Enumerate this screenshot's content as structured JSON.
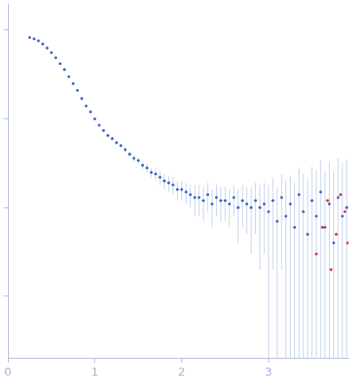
{
  "chart_data": {
    "type": "scatter",
    "log": "y",
    "grid": false,
    "tick_labels": "x",
    "xlim": [
      0,
      3.92
    ],
    "xticks": [
      0,
      1,
      2,
      3
    ],
    "ylim": [
      0.0002,
      2
    ],
    "yticks": [
      0.001,
      0.01,
      0.1,
      1
    ],
    "series": [
      {
        "color": "#3a65c0",
        "marker": "circle",
        "x": [
          0.25,
          0.3,
          0.35,
          0.4,
          0.45,
          0.5,
          0.55,
          0.6,
          0.65,
          0.7,
          0.75,
          0.8,
          0.85,
          0.9,
          0.95,
          1.0,
          1.05,
          1.1,
          1.15,
          1.2,
          1.25,
          1.3,
          1.35,
          1.4,
          1.45,
          1.5,
          1.55,
          1.6,
          1.65,
          1.7,
          1.75,
          1.8,
          1.85,
          1.9,
          1.95,
          2.0,
          2.05,
          2.1,
          2.15,
          2.2,
          2.25,
          2.3,
          2.35,
          2.4,
          2.45,
          2.5,
          2.55,
          2.6,
          2.65,
          2.7,
          2.75,
          2.8,
          2.85,
          2.9,
          2.95,
          3.0,
          3.05,
          3.1,
          3.15,
          3.2,
          3.25,
          3.3,
          3.35,
          3.4,
          3.45,
          3.5,
          3.55,
          3.6,
          3.65,
          3.7,
          3.75,
          3.8,
          3.85,
          3.9
        ],
        "values": [
          0.83,
          0.8,
          0.76,
          0.7,
          0.63,
          0.56,
          0.49,
          0.42,
          0.36,
          0.3,
          0.25,
          0.21,
          0.17,
          0.14,
          0.12,
          0.1,
          0.085,
          0.074,
          0.065,
          0.06,
          0.054,
          0.05,
          0.045,
          0.04,
          0.036,
          0.034,
          0.03,
          0.028,
          0.025,
          0.024,
          0.022,
          0.02,
          0.019,
          0.018,
          0.016,
          0.016,
          0.015,
          0.014,
          0.013,
          0.013,
          0.012,
          0.014,
          0.011,
          0.013,
          0.012,
          0.012,
          0.011,
          0.013,
          0.01,
          0.012,
          0.011,
          0.01,
          0.012,
          0.01,
          0.011,
          0.009,
          0.012,
          0.007,
          0.013,
          0.008,
          0.011,
          0.006,
          0.014,
          0.009,
          0.005,
          0.012,
          0.008,
          0.015,
          0.006,
          0.011,
          0.004,
          0.013,
          0.008,
          0.01
        ],
        "errors": [
          0.01,
          0.01,
          0.01,
          0.01,
          0.01,
          0.008,
          0.007,
          0.006,
          0.005,
          0.004,
          0.003,
          0.003,
          0.002,
          0.002,
          0.002,
          0.002,
          0.002,
          0.002,
          0.002,
          0.002,
          0.003,
          0.003,
          0.003,
          0.003,
          0.003,
          0.003,
          0.003,
          0.003,
          0.003,
          0.004,
          0.004,
          0.004,
          0.004,
          0.004,
          0.004,
          0.004,
          0.004,
          0.004,
          0.005,
          0.005,
          0.005,
          0.005,
          0.005,
          0.005,
          0.005,
          0.005,
          0.005,
          0.005,
          0.006,
          0.006,
          0.006,
          0.007,
          0.007,
          0.008,
          0.008,
          0.009,
          0.01,
          0.01,
          0.011,
          0.012,
          0.012,
          0.013,
          0.014,
          0.015,
          0.016,
          0.017,
          0.018,
          0.019,
          0.02,
          0.021,
          0.022,
          0.023,
          0.024,
          0.025
        ]
      },
      {
        "color": "#e0302a",
        "marker": "circle",
        "x": [
          3.55,
          3.62,
          3.68,
          3.72,
          3.78,
          3.83,
          3.88,
          3.91
        ],
        "values": [
          0.003,
          0.006,
          0.012,
          0.002,
          0.005,
          0.014,
          0.009,
          0.004
        ]
      }
    ]
  }
}
